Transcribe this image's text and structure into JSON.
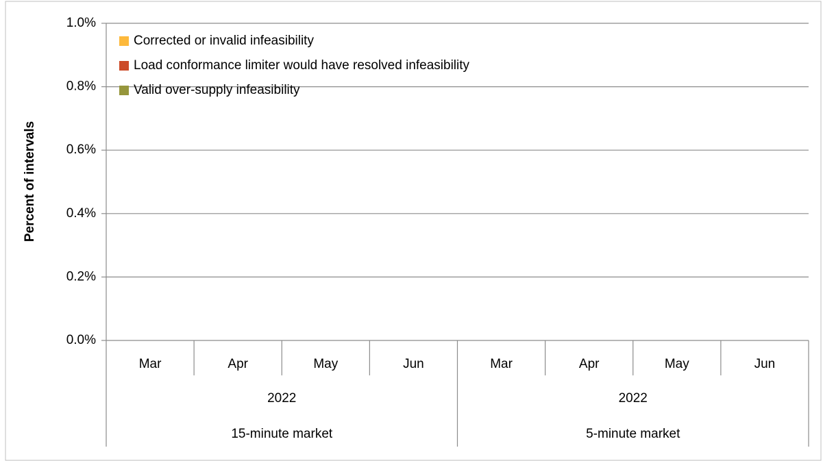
{
  "chart_data": {
    "type": "stacked_bar",
    "y_axis_label": "Percent of intervals",
    "categories": [
      "Mar",
      "Apr",
      "May",
      "Jun",
      "Mar",
      "Apr",
      "May",
      "Jun"
    ],
    "year_labels": [
      "2022",
      "2022"
    ],
    "group_labels": [
      "15-minute market",
      "5-minute market"
    ],
    "series": [
      {
        "name": "Corrected or invalid infeasibility",
        "color": "#fdb93c",
        "values": [
          0,
          0,
          0,
          0,
          0,
          0,
          0,
          0
        ]
      },
      {
        "name": "Load conformance limiter would have resolved infeasibility",
        "color": "#cc4a28",
        "values": [
          0,
          0,
          0,
          0,
          0,
          0,
          0,
          0
        ]
      },
      {
        "name": "Valid over-supply infeasibility",
        "color": "#96963c",
        "values": [
          0,
          0,
          0,
          0,
          0,
          0,
          0,
          0
        ]
      }
    ],
    "ylim": [
      0,
      1.0
    ],
    "yticks": [
      {
        "value": 0,
        "label": "0.0%"
      },
      {
        "value": 0.2,
        "label": "0.2%"
      },
      {
        "value": 0.4,
        "label": "0.4%"
      },
      {
        "value": 0.6,
        "label": "0.6%"
      },
      {
        "value": 0.8,
        "label": "0.8%"
      },
      {
        "value": 1.0,
        "label": "1.0%"
      }
    ],
    "grid": true,
    "legend": "top-left"
  }
}
